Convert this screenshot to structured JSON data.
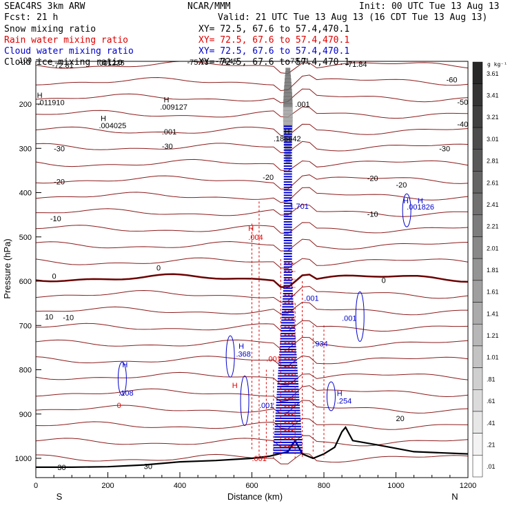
{
  "header": {
    "model": "SEAC4RS  3km ARW",
    "center": "NCAR/MMM",
    "init": "Init: 00 UTC Tue 13 Aug 13",
    "fcst": "Fcst:   21 h",
    "valid": "Valid: 21 UTC Tue 13 Aug 13 (16 CDT Tue 13 Aug 13)",
    "fields": [
      {
        "label": "Snow mixing ratio",
        "xy": "XY=  72.5, 67.6 to  57.4,470.1",
        "color": "#000000"
      },
      {
        "label": "Rain water mixing ratio",
        "xy": "XY=  72.5, 67.6 to  57.4,470.1",
        "color": "#e00000"
      },
      {
        "label": "Cloud water mixing ratio",
        "xy": "XY=  72.5, 67.6 to  57.4,470.1",
        "color": "#0000cc"
      },
      {
        "label": "Cloud ice mixing ratio",
        "xy": "XY=  72.5, 67.6 to  57.4,470.1",
        "color": "#000000"
      }
    ]
  },
  "chart_data": {
    "type": "cross-section contour",
    "xlabel": "Distance (km)",
    "ylabel": "Pressure (hPa)",
    "xlim": [
      0,
      1200
    ],
    "ylim": [
      1050,
      100
    ],
    "x_ticks": [
      "0",
      "200",
      "400",
      "600",
      "800",
      "1000",
      "1200"
    ],
    "x_tick_values": [
      0,
      200,
      400,
      600,
      800,
      1000,
      1200
    ],
    "y_ticks": [
      "100",
      "200",
      "300",
      "400",
      "500",
      "600",
      "700",
      "800",
      "900",
      "1000"
    ],
    "y_tick_values": [
      100,
      200,
      300,
      400,
      500,
      600,
      700,
      800,
      900,
      1000
    ],
    "endpoint_labels": {
      "left": "S",
      "right": "N"
    },
    "grid": false,
    "shading_units": "g kg⁻¹",
    "colorbar_labels": [
      "3.61",
      "3.41",
      "3.21",
      "3.01",
      "2.81",
      "2.61",
      "2.41",
      "2.21",
      "2.01",
      "1.81",
      "1.61",
      "1.41",
      "1.21",
      "1.01",
      ".81",
      ".61",
      ".41",
      ".21",
      ".01"
    ],
    "temperature_contours": {
      "color": "#8b1a1a",
      "zero_color": "#6b0000",
      "levels": [
        {
          "label": "-72.81",
          "x": 45,
          "p": 112
        },
        {
          "label": "-75.73",
          "x": 420,
          "p": 105
        },
        {
          "label": "-74.45",
          "x": 500,
          "p": 103
        },
        {
          "label": "-73.01",
          "x": 700,
          "p": 102
        },
        {
          "label": "-71.84",
          "x": 860,
          "p": 110
        },
        {
          "label": "-60",
          "x": 1140,
          "p": 145
        },
        {
          "label": "-50",
          "x": 1170,
          "p": 195
        },
        {
          "label": "-40",
          "x": 1170,
          "p": 245
        },
        {
          "label": "-30",
          "x": 1120,
          "p": 300
        },
        {
          "label": "-30",
          "x": 50,
          "p": 300
        },
        {
          "label": "-30",
          "x": 350,
          "p": 295
        },
        {
          "label": "-20",
          "x": 50,
          "p": 375
        },
        {
          "label": "-20",
          "x": 630,
          "p": 365
        },
        {
          "label": "-20",
          "x": 920,
          "p": 367
        },
        {
          "label": "-20",
          "x": 1000,
          "p": 382
        },
        {
          "label": "-10",
          "x": 40,
          "p": 458
        },
        {
          "label": "-10",
          "x": 920,
          "p": 448
        },
        {
          "label": "0",
          "x": 45,
          "p": 588
        },
        {
          "label": "0",
          "x": 335,
          "p": 570
        },
        {
          "label": "0",
          "x": 960,
          "p": 598
        },
        {
          "label": "10",
          "x": 25,
          "p": 680
        },
        {
          "label": "-10",
          "x": 75,
          "p": 682
        },
        {
          "label": "20",
          "x": 1000,
          "p": 910
        },
        {
          "label": "30",
          "x": 60,
          "p": 1020
        },
        {
          "label": "30",
          "x": 300,
          "p": 1018
        }
      ]
    },
    "surface_pressure": [
      [
        0,
        1020
      ],
      [
        100,
        1020
      ],
      [
        200,
        1019
      ],
      [
        300,
        1015
      ],
      [
        400,
        1008
      ],
      [
        500,
        1005
      ],
      [
        600,
        1000
      ],
      [
        650,
        995
      ],
      [
        700,
        985
      ],
      [
        720,
        960
      ],
      [
        740,
        990
      ],
      [
        770,
        1000
      ],
      [
        800,
        990
      ],
      [
        830,
        975
      ],
      [
        850,
        940
      ],
      [
        860,
        930
      ],
      [
        880,
        960
      ],
      [
        950,
        970
      ],
      [
        1050,
        985
      ],
      [
        1200,
        990
      ]
    ],
    "max_labels": [
      {
        "label": ".001225",
        "x": 170,
        "p": 107,
        "color": "#000000"
      },
      {
        "label": "H",
        "x": 3,
        "p": 180,
        "color": "#000000"
      },
      {
        "label": ".011910",
        "x": 5,
        "p": 196,
        "color": "#000000"
      },
      {
        "label": "H",
        "x": 355,
        "p": 190,
        "color": "#000000"
      },
      {
        "label": ".009127",
        "x": 345,
        "p": 206,
        "color": "#000000"
      },
      {
        "label": "H",
        "x": 180,
        "p": 232,
        "color": "#000000"
      },
      {
        "label": ".004025",
        "x": 175,
        "p": 248,
        "color": "#000000"
      },
      {
        "label": ".001",
        "x": 350,
        "p": 262,
        "color": "#000000"
      },
      {
        "label": "H",
        "x": 690,
        "p": 262,
        "color": "#000000"
      },
      {
        "label": ".185642",
        "x": 660,
        "p": 278,
        "color": "#000000"
      },
      {
        "label": ".001",
        "x": 720,
        "p": 200,
        "color": "#000000"
      },
      {
        "label": "H",
        "x": 590,
        "p": 480,
        "color": "#e00000"
      },
      {
        "label": ".004",
        "x": 590,
        "p": 500,
        "color": "#e00000"
      },
      {
        "label": "H",
        "x": 1020,
        "p": 418,
        "color": "#0000cc"
      },
      {
        "label": "H",
        "x": 1060,
        "p": 418,
        "color": "#0000cc"
      },
      {
        "label": ".001826",
        "x": 1030,
        "p": 432,
        "color": "#0000cc"
      },
      {
        "label": "H",
        "x": 240,
        "p": 788,
        "color": "#0000cc"
      },
      {
        "label": ".108",
        "x": 230,
        "p": 852,
        "color": "#0000cc"
      },
      {
        "label": "H",
        "x": 563,
        "p": 746,
        "color": "#0000cc"
      },
      {
        "label": ".368",
        "x": 556,
        "p": 764,
        "color": "#0000cc"
      },
      {
        "label": ".934",
        "x": 770,
        "p": 741,
        "color": "#0000cc"
      },
      {
        "label": "H",
        "x": 836,
        "p": 853,
        "color": "#0000cc"
      },
      {
        "label": ".254",
        "x": 836,
        "p": 870,
        "color": "#0000cc"
      },
      {
        "label": ".001",
        "x": 850,
        "p": 683,
        "color": "#0000cc"
      },
      {
        "label": ".001",
        "x": 745,
        "p": 638,
        "color": "#0000cc"
      },
      {
        "label": "1.701",
        "x": 705,
        "p": 430,
        "color": "#0000cc"
      },
      {
        "label": ".001",
        "x": 640,
        "p": 775,
        "color": "#e00000"
      },
      {
        "label": ".001",
        "x": 620,
        "p": 880,
        "color": "#0000cc"
      },
      {
        "label": ".001",
        "x": 600,
        "p": 1000,
        "color": "#e00000"
      },
      {
        "label": "0",
        "x": 225,
        "p": 880,
        "color": "#e00000"
      },
      {
        "label": "H",
        "x": 545,
        "p": 835,
        "color": "#e00000"
      }
    ]
  }
}
